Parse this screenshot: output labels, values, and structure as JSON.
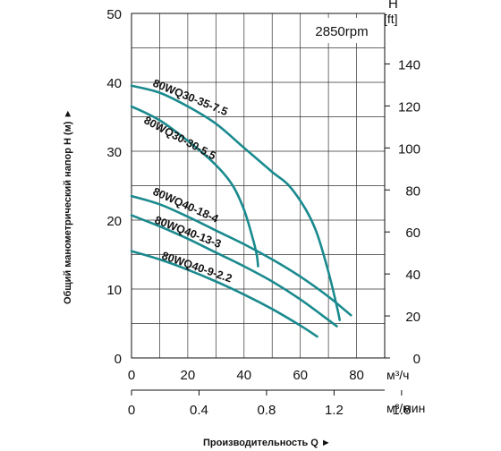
{
  "chart_data": {
    "type": "line",
    "rpm_label": "2850rpm",
    "ylabel": "Общий манометрический напор H (м) ►",
    "xlabel": "Производительность Q ►",
    "ylim": [
      0,
      50
    ],
    "yticks": [
      "0",
      "10",
      "20",
      "30",
      "40",
      "50"
    ],
    "xlim": [
      0,
      90
    ],
    "xticks": [
      "0",
      "20",
      "40",
      "60",
      "80"
    ],
    "x_unit": "м³/ч",
    "x2_ticks": [
      "0",
      "0.4",
      "0.8",
      "1.2",
      "1.6"
    ],
    "x2_unit": "м³/мин",
    "y2_title": "H",
    "y2_unit": "[ft]",
    "y2_ticks": [
      "0",
      "20",
      "40",
      "60",
      "80",
      "100",
      "120",
      "140"
    ],
    "series": [
      {
        "name": "80WQ30-35-7.5",
        "x": [
          0,
          10,
          20,
          30,
          40,
          50,
          56,
          62,
          66,
          70,
          73,
          74
        ],
        "y": [
          39.5,
          38.5,
          36.5,
          34,
          30.5,
          27,
          25,
          21.5,
          18,
          12.5,
          7.5,
          5.5
        ]
      },
      {
        "name": "80WQ30-30-5.5",
        "x": [
          0,
          10,
          20,
          30,
          36,
          40,
          43,
          44.5,
          45
        ],
        "y": [
          36.5,
          34.5,
          31.5,
          28,
          25,
          21.5,
          17.5,
          15,
          13.3
        ]
      },
      {
        "name": "80WQ40-18-4",
        "x": [
          0,
          10,
          20,
          30,
          40,
          50,
          60,
          70,
          78
        ],
        "y": [
          23.5,
          22.3,
          20.5,
          18.5,
          16.5,
          14.3,
          11.8,
          8.9,
          6.2
        ]
      },
      {
        "name": "80WQ40-13-3",
        "x": [
          0,
          10,
          20,
          30,
          40,
          50,
          60,
          70,
          73
        ],
        "y": [
          20.7,
          19.1,
          17.3,
          15.3,
          13.3,
          11.1,
          8.5,
          5.5,
          4.6
        ]
      },
      {
        "name": "80WQ40-9-2.2",
        "x": [
          0,
          10,
          20,
          30,
          40,
          50,
          60,
          66
        ],
        "y": [
          15.5,
          14.3,
          12.8,
          11.1,
          9.2,
          7.1,
          4.7,
          3.1
        ]
      }
    ],
    "color": "#1a8a8e",
    "grid": true
  }
}
